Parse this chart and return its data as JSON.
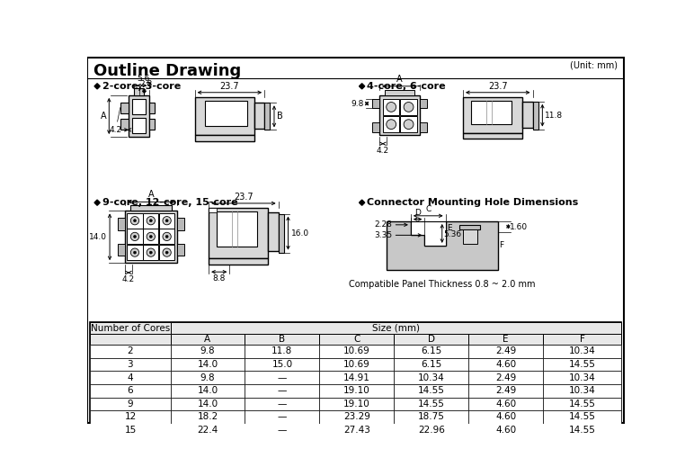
{
  "title": "Outline Drawing",
  "unit_label": "(Unit: mm)",
  "bg_color": "#ffffff",
  "border_color": "#000000",
  "table_header_bg": "#e8e8e8",
  "size_label": "Size (mm)",
  "table_rows": [
    [
      "2",
      "9.8",
      "11.8",
      "10.69",
      "6.15",
      "2.49",
      "10.34"
    ],
    [
      "3",
      "14.0",
      "15.0",
      "10.69",
      "6.15",
      "4.60",
      "14.55"
    ],
    [
      "4",
      "9.8",
      "—",
      "14.91",
      "10.34",
      "2.49",
      "10.34"
    ],
    [
      "6",
      "14.0",
      "—",
      "19.10",
      "14.55",
      "2.49",
      "10.34"
    ],
    [
      "9",
      "14.0",
      "—",
      "19.10",
      "14.55",
      "4.60",
      "14.55"
    ],
    [
      "12",
      "18.2",
      "—",
      "23.29",
      "18.75",
      "4.60",
      "14.55"
    ],
    [
      "15",
      "22.4",
      "—",
      "27.43",
      "22.96",
      "4.60",
      "14.55"
    ]
  ],
  "section1_label": "2-core, 3-core",
  "section2_label": "4-core, 6-core",
  "section3_label": "9-core, 12-core, 15-core",
  "section4_label": "Connector Mounting Hole Dimensions",
  "compat_label": "Compatible Panel Thickness 0.8 ~ 2.0 mm"
}
